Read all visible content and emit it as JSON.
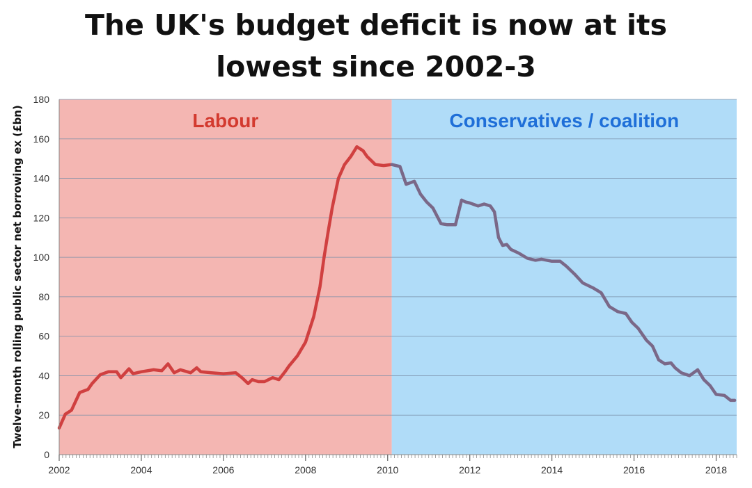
{
  "title_line1": "The UK's budget deficit is now at its",
  "title_line2": "lowest since 2002-3",
  "colors": {
    "labour_bg": "#f4b6b2",
    "conservative_bg": "#b0dcf8",
    "labour_line": "#d04040",
    "conservative_line": "#7a6888",
    "labour_label": "#d33a2f",
    "conservative_label": "#1f6fd8",
    "grid": "#7a8fa8"
  },
  "chart_data": {
    "type": "line",
    "title": "The UK's budget deficit is now at its lowest since 2002-3",
    "xlabel": "",
    "ylabel": "Twelve-month rolling public sector net borrowing ex (£bn)",
    "xlim": [
      2002,
      2018.5
    ],
    "ylim": [
      0,
      180
    ],
    "x_ticks": [
      "2002",
      "2004",
      "2006",
      "2008",
      "2010",
      "2012",
      "2014",
      "2016",
      "2018"
    ],
    "y_ticks": [
      "0",
      "20",
      "40",
      "60",
      "80",
      "100",
      "120",
      "140",
      "160",
      "180"
    ],
    "grid": true,
    "regions": [
      {
        "name": "Labour",
        "x_start": 2002,
        "x_end": 2010.1
      },
      {
        "name": "Conservatives / coalition",
        "x_start": 2010.1,
        "x_end": 2018.5
      }
    ],
    "series": [
      {
        "name": "Labour",
        "x": [
          2002.0,
          2002.15,
          2002.3,
          2002.5,
          2002.7,
          2002.8,
          2003.0,
          2003.2,
          2003.4,
          2003.5,
          2003.7,
          2003.8,
          2004.0,
          2004.3,
          2004.5,
          2004.65,
          2004.8,
          2004.95,
          2005.2,
          2005.35,
          2005.45,
          2005.7,
          2006.0,
          2006.3,
          2006.45,
          2006.6,
          2006.7,
          2006.85,
          2007.0,
          2007.2,
          2007.35,
          2007.5,
          2007.6,
          2007.8,
          2008.0,
          2008.2,
          2008.35,
          2008.45,
          2008.55,
          2008.65,
          2008.8,
          2008.95,
          2009.1,
          2009.25,
          2009.4,
          2009.5,
          2009.7,
          2009.9,
          2010.1
        ],
        "values": [
          13.5,
          20.5,
          22.5,
          31.5,
          33,
          36,
          40.5,
          42,
          42,
          39,
          43.5,
          41,
          42,
          43,
          42.5,
          46,
          41.5,
          43,
          41.5,
          44,
          42,
          41.5,
          41,
          41.5,
          39,
          36,
          38,
          37,
          37,
          39,
          38,
          42,
          45,
          50,
          57,
          70,
          85,
          100,
          113,
          125,
          140,
          147,
          151,
          156,
          154,
          151,
          147,
          146.5,
          147
        ]
      },
      {
        "name": "Conservatives / coalition",
        "x": [
          2010.1,
          2010.3,
          2010.45,
          2010.65,
          2010.8,
          2010.95,
          2011.1,
          2011.3,
          2011.45,
          2011.65,
          2011.8,
          2011.9,
          2012.0,
          2012.2,
          2012.35,
          2012.5,
          2012.6,
          2012.7,
          2012.8,
          2012.9,
          2013.0,
          2013.2,
          2013.4,
          2013.6,
          2013.75,
          2014.0,
          2014.2,
          2014.35,
          2014.55,
          2014.75,
          2015.0,
          2015.2,
          2015.4,
          2015.6,
          2015.8,
          2015.95,
          2016.1,
          2016.3,
          2016.45,
          2016.6,
          2016.75,
          2016.9,
          2017.0,
          2017.15,
          2017.35,
          2017.55,
          2017.7,
          2017.85,
          2018.0,
          2018.2,
          2018.35,
          2018.45
        ],
        "values": [
          147,
          146,
          137,
          138.5,
          132,
          128,
          125,
          117,
          116.5,
          116.5,
          129,
          128,
          127.5,
          126,
          127,
          126,
          123,
          110,
          106,
          106.5,
          104,
          102,
          99.5,
          98.5,
          99,
          98,
          98,
          95.5,
          91.5,
          87,
          84.5,
          82,
          75,
          72.5,
          71.5,
          67,
          64,
          58,
          55,
          48,
          46,
          46.5,
          44,
          41.5,
          40,
          43,
          38,
          35,
          30.5,
          30,
          27.5,
          27.5
        ]
      }
    ]
  }
}
